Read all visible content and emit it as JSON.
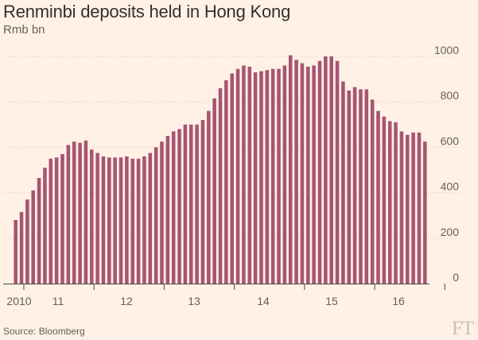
{
  "title": "Renminbi deposits held in Hong Kong",
  "subtitle": "Rmb bn",
  "source": "Source: Bloomberg",
  "logo": "FT",
  "colors": {
    "bar": "#a65573",
    "background": "#fff1e5",
    "grid": "#d8cfc7",
    "axis": "#4d4845"
  },
  "chart_data": {
    "type": "bar",
    "ylim": [
      0,
      1000
    ],
    "yticks": [
      0,
      200,
      400,
      600,
      800,
      1000
    ],
    "xtick_labels": [
      "2010",
      "11",
      "12",
      "13",
      "14",
      "15",
      "16"
    ],
    "grid": true,
    "y_axis_side": "right",
    "series": [
      {
        "values": [
          280,
          315,
          370,
          410,
          465,
          510,
          550,
          555,
          570,
          610,
          625,
          620,
          630,
          590,
          575,
          560,
          555,
          555,
          555,
          560,
          550,
          550,
          560,
          575,
          600,
          625,
          650,
          670,
          680,
          700,
          700,
          700,
          720,
          760,
          815,
          860,
          895,
          925,
          945,
          960,
          955,
          930,
          935,
          940,
          945,
          945,
          960,
          1005,
          985,
          970,
          955,
          960,
          980,
          1000,
          1000,
          980,
          890,
          850,
          865,
          855,
          855,
          810,
          760,
          735,
          715,
          710,
          670,
          655,
          665,
          665,
          625
        ]
      }
    ]
  }
}
